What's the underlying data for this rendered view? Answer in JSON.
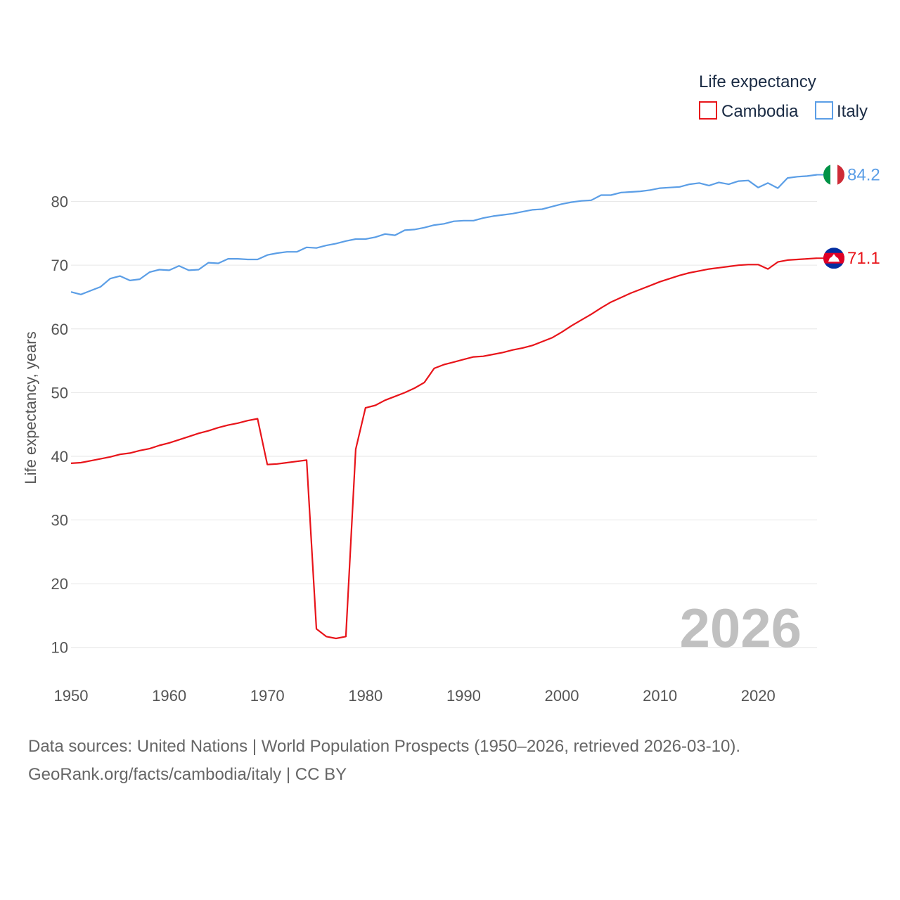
{
  "chart_data": {
    "type": "line",
    "legend_title": "Life expectancy",
    "ylabel": "Life expectancy, years",
    "xlabel": "",
    "xlim": [
      1950,
      2026
    ],
    "ylim": [
      5,
      90
    ],
    "yticks": [
      10,
      20,
      30,
      40,
      50,
      60,
      70,
      80
    ],
    "xticks": [
      1950,
      1960,
      1970,
      1980,
      1990,
      2000,
      2010,
      2020
    ],
    "year_label": "2026",
    "legend_position": "top-right",
    "x": [
      1950,
      1951,
      1952,
      1953,
      1954,
      1955,
      1956,
      1957,
      1958,
      1959,
      1960,
      1961,
      1962,
      1963,
      1964,
      1965,
      1966,
      1967,
      1968,
      1969,
      1970,
      1971,
      1972,
      1973,
      1974,
      1975,
      1976,
      1977,
      1978,
      1979,
      1980,
      1981,
      1982,
      1983,
      1984,
      1985,
      1986,
      1987,
      1988,
      1989,
      1990,
      1991,
      1992,
      1993,
      1994,
      1995,
      1996,
      1997,
      1998,
      1999,
      2000,
      2001,
      2002,
      2003,
      2004,
      2005,
      2006,
      2007,
      2008,
      2009,
      2010,
      2011,
      2012,
      2013,
      2014,
      2015,
      2016,
      2017,
      2018,
      2019,
      2020,
      2021,
      2022,
      2023,
      2024,
      2025,
      2026
    ],
    "series": [
      {
        "name": "Cambodia",
        "color": "#e8141a",
        "end_label": "71.1",
        "values": [
          38.9,
          39.0,
          39.3,
          39.6,
          39.9,
          40.3,
          40.5,
          40.9,
          41.2,
          41.7,
          42.1,
          42.6,
          43.1,
          43.6,
          44.0,
          44.5,
          44.9,
          45.2,
          45.6,
          45.9,
          38.7,
          38.8,
          39.0,
          39.2,
          39.4,
          12.9,
          11.7,
          11.4,
          11.7,
          41.1,
          47.6,
          48.0,
          48.8,
          49.4,
          50.0,
          50.7,
          51.6,
          53.8,
          54.4,
          54.8,
          55.2,
          55.6,
          55.7,
          56.0,
          56.3,
          56.7,
          57.0,
          57.4,
          58.0,
          58.6,
          59.5,
          60.5,
          61.4,
          62.3,
          63.3,
          64.2,
          64.9,
          65.6,
          66.2,
          66.8,
          67.4,
          67.9,
          68.4,
          68.8,
          69.1,
          69.4,
          69.6,
          69.8,
          70.0,
          70.1,
          70.1,
          69.4,
          70.5,
          70.8,
          70.9,
          71.0,
          71.1
        ]
      },
      {
        "name": "Italy",
        "color": "#5b9ee6",
        "end_label": "84.2",
        "values": [
          65.8,
          65.4,
          66.0,
          66.6,
          67.9,
          68.3,
          67.6,
          67.8,
          68.9,
          69.3,
          69.2,
          69.9,
          69.2,
          69.3,
          70.4,
          70.3,
          71.0,
          71.0,
          70.9,
          70.9,
          71.6,
          71.9,
          72.1,
          72.1,
          72.8,
          72.7,
          73.1,
          73.4,
          73.8,
          74.1,
          74.1,
          74.4,
          74.9,
          74.7,
          75.5,
          75.6,
          75.9,
          76.3,
          76.5,
          76.9,
          77.0,
          77.0,
          77.4,
          77.7,
          77.9,
          78.1,
          78.4,
          78.7,
          78.8,
          79.2,
          79.6,
          79.9,
          80.1,
          80.2,
          81.0,
          81.0,
          81.4,
          81.5,
          81.6,
          81.8,
          82.1,
          82.2,
          82.3,
          82.7,
          82.9,
          82.5,
          83.0,
          82.7,
          83.2,
          83.3,
          82.2,
          82.9,
          82.1,
          83.7,
          83.9,
          84.0,
          84.2
        ]
      }
    ]
  },
  "source": {
    "line1": "Data sources: United Nations | World Population Prospects (1950–2026, retrieved 2026-03-10).",
    "line2": "GeoRank.org/facts/cambodia/italy | CC BY"
  },
  "flags": {
    "cambodia": "cambodia-flag",
    "italy": "italy-flag"
  }
}
